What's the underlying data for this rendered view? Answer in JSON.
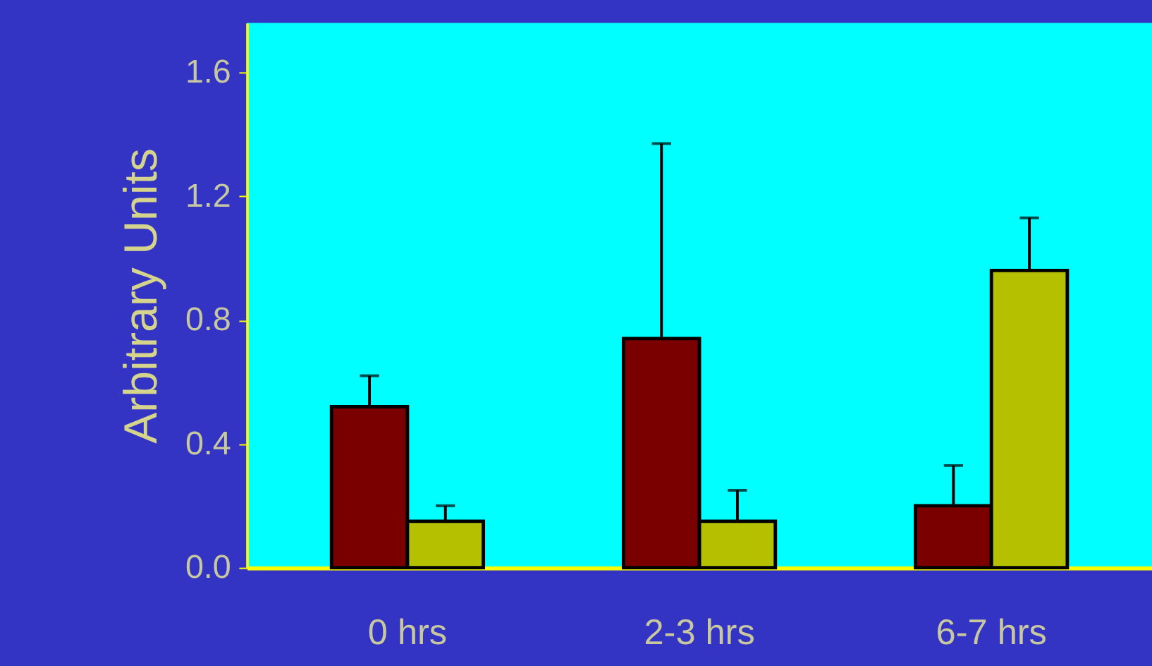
{
  "chart_data": {
    "type": "bar",
    "ylabel": "Arbitrary Units",
    "categories": [
      "0 hrs",
      "2-3 hrs",
      "6-7 hrs"
    ],
    "series": [
      {
        "color": "#7a0000",
        "values": [
          0.52,
          0.74,
          0.2
        ],
        "errors": [
          [
            0.52,
            0.62
          ],
          [
            0.74,
            1.37
          ],
          [
            0.2,
            0.33
          ]
        ]
      },
      {
        "color": "#b4c000",
        "values": [
          0.15,
          0.15,
          0.96
        ],
        "errors": [
          [
            0.15,
            0.2
          ],
          [
            0.15,
            0.25
          ],
          [
            0.96,
            1.13
          ]
        ]
      }
    ],
    "ylim": [
      0,
      1.76
    ],
    "yticks": [
      {
        "value": 0,
        "label": "0.0"
      },
      {
        "value": 0.4,
        "label": "0.4"
      },
      {
        "value": 0.8,
        "label": "0.8"
      },
      {
        "value": 1.2,
        "label": "1.2"
      },
      {
        "value": 1.6,
        "label": "1.6"
      }
    ],
    "grid": false
  }
}
